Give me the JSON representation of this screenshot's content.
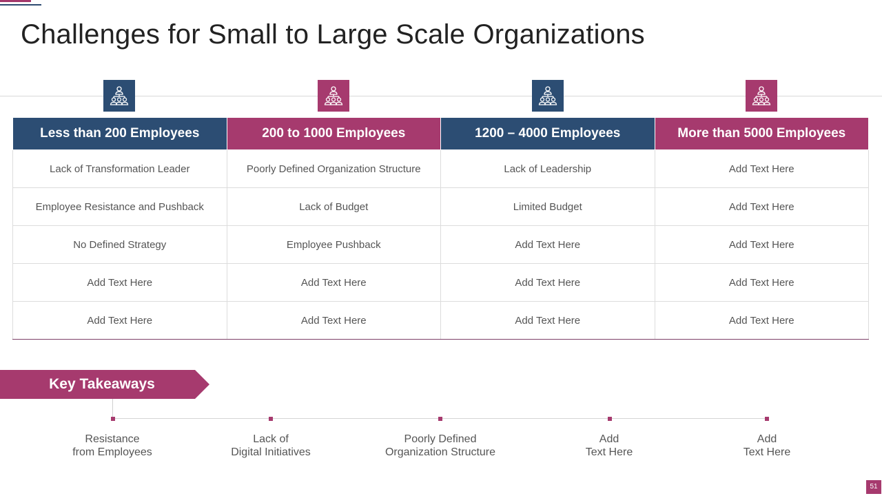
{
  "title": "Challenges for Small to Large Scale Organizations",
  "colors": {
    "navy": "#2c4d73",
    "plum": "#a63a6e"
  },
  "columns": [
    {
      "header": "Less than 200 Employees",
      "icon": "organization-people-icon",
      "color": "navy",
      "cells": [
        "Lack of Transformation Leader",
        "Employee Resistance and Pushback",
        "No Defined Strategy",
        "Add Text Here",
        "Add Text Here"
      ]
    },
    {
      "header": "200 to 1000 Employees",
      "icon": "organization-people-icon",
      "color": "plum",
      "cells": [
        "Poorly Defined Organization Structure",
        "Lack of Budget",
        "Employee Pushback",
        "Add Text Here",
        "Add Text Here"
      ]
    },
    {
      "header": "1200 – 4000 Employees",
      "icon": "organization-people-icon",
      "color": "navy",
      "cells": [
        "Lack of Leadership",
        "Limited Budget",
        "Add Text Here",
        "Add Text Here",
        "Add Text Here"
      ]
    },
    {
      "header": "More than 5000 Employees",
      "icon": "organization-people-icon",
      "color": "plum",
      "cells": [
        "Add Text Here",
        "Add Text Here",
        "Add Text Here",
        "Add Text Here",
        "Add Text Here"
      ]
    }
  ],
  "takeaways": {
    "label": "Key Takeaways",
    "items": [
      {
        "line1": "Resistance",
        "line2": "from Employees"
      },
      {
        "line1": "Lack of",
        "line2": "Digital Initiatives"
      },
      {
        "line1": "Poorly Defined",
        "line2": "Organization Structure"
      },
      {
        "line1": "Add",
        "line2": "Text Here"
      },
      {
        "line1": "Add",
        "line2": "Text Here"
      }
    ]
  },
  "page_number": "51"
}
